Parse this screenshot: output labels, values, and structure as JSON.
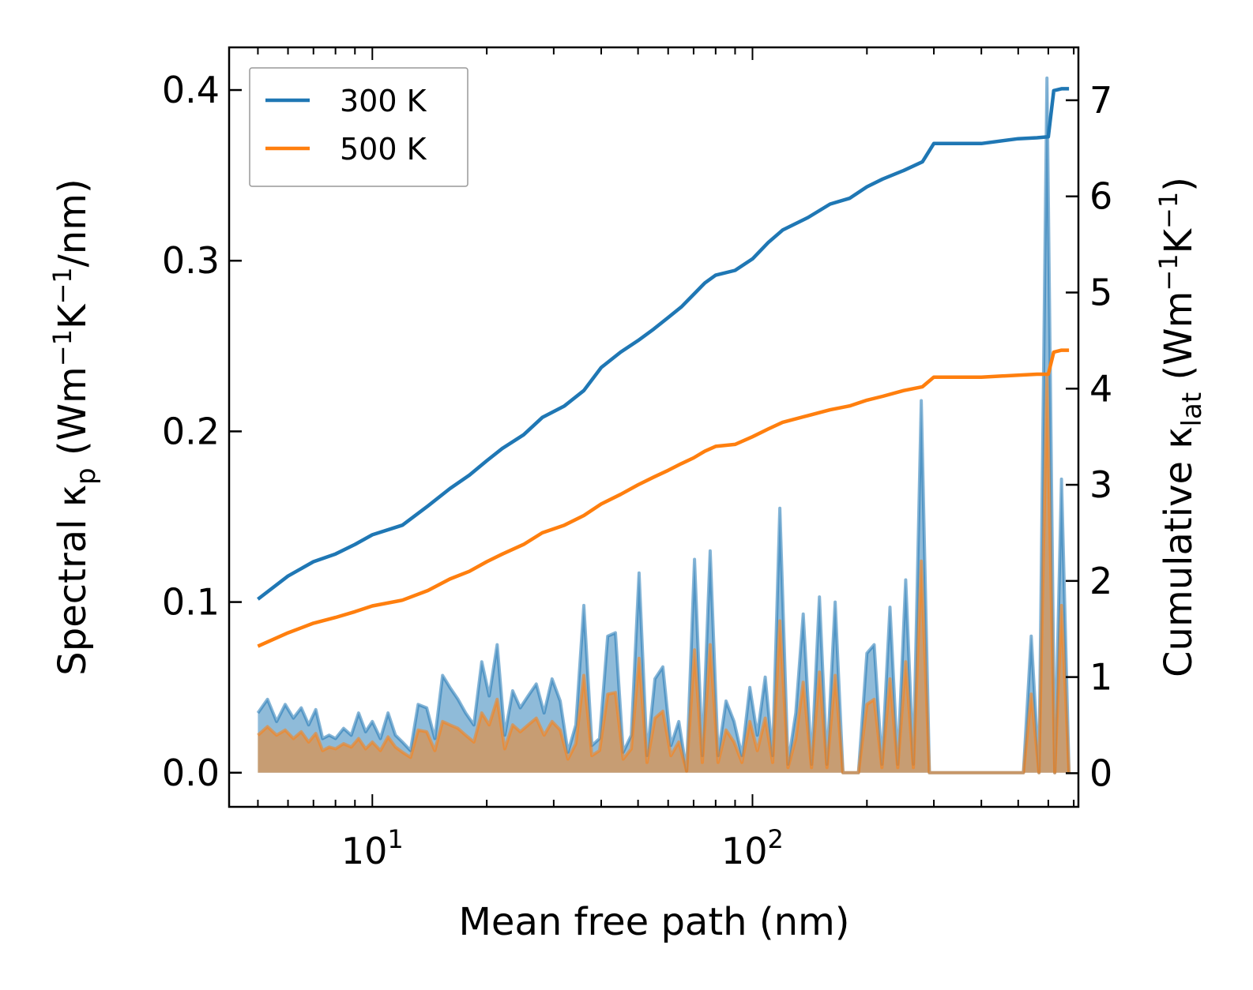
{
  "chart_data": {
    "type": "line",
    "title": "",
    "xlabel": "Mean free path (nm)",
    "xscale": "log",
    "xlim": [
      4.2,
      720
    ],
    "xticks": [
      {
        "base": "10",
        "exp": "1",
        "value": 10
      },
      {
        "base": "10",
        "exp": "2",
        "value": 100
      }
    ],
    "ylabel_left": {
      "prefix": "Spectral κ",
      "sub": "p",
      "mid": " (Wm",
      "sup1": "−1",
      "mid2": "K",
      "sup2": "−1",
      "suffix": "/nm)"
    },
    "ylim_left": [
      -0.02,
      0.425
    ],
    "yticks_left": [
      "0.0",
      "0.1",
      "0.2",
      "0.3",
      "0.4"
    ],
    "ylabel_right": {
      "prefix": "Cumulative κ",
      "sub": "lat",
      "mid": " (Wm",
      "sup1": "−1",
      "mid2": "K",
      "sup2": "−1",
      "suffix": ")"
    },
    "ylim_right": [
      -0.35,
      7.55
    ],
    "yticks_right": [
      "0",
      "1",
      "2",
      "3",
      "4",
      "5",
      "6",
      "7"
    ],
    "legend": {
      "position": "top-left",
      "entries": [
        "300 K",
        "500 K"
      ]
    },
    "series": [
      {
        "name": "300 K",
        "color": "#1f77b4",
        "axis": "right",
        "kind": "cumulative",
        "x": [
          5,
          6,
          7,
          8,
          9,
          10,
          12,
          14,
          16,
          18,
          20,
          22,
          25,
          28,
          32,
          36,
          40,
          45,
          50,
          55,
          60,
          65,
          70,
          75,
          80,
          90,
          100,
          110,
          120,
          140,
          160,
          180,
          200,
          220,
          250,
          280,
          300,
          400,
          500,
          560,
          600,
          620,
          650,
          680
        ],
        "values": [
          1.81,
          2.05,
          2.2,
          2.28,
          2.38,
          2.48,
          2.58,
          2.78,
          2.96,
          3.1,
          3.25,
          3.38,
          3.52,
          3.7,
          3.82,
          3.98,
          4.22,
          4.38,
          4.5,
          4.62,
          4.74,
          4.85,
          4.98,
          5.1,
          5.18,
          5.23,
          5.35,
          5.52,
          5.65,
          5.78,
          5.92,
          5.98,
          6.1,
          6.18,
          6.27,
          6.36,
          6.55,
          6.55,
          6.6,
          6.61,
          6.62,
          7.1,
          7.12,
          7.12
        ]
      },
      {
        "name": "500 K",
        "color": "#ff7f0e",
        "axis": "right",
        "kind": "cumulative",
        "x": [
          5,
          6,
          7,
          8,
          9,
          10,
          12,
          14,
          16,
          18,
          20,
          22,
          25,
          28,
          32,
          36,
          40,
          45,
          50,
          55,
          60,
          65,
          70,
          75,
          80,
          90,
          100,
          110,
          120,
          140,
          160,
          180,
          200,
          220,
          250,
          280,
          300,
          400,
          500,
          560,
          600,
          620,
          650,
          680
        ],
        "values": [
          1.32,
          1.46,
          1.56,
          1.62,
          1.68,
          1.74,
          1.8,
          1.9,
          2.02,
          2.1,
          2.2,
          2.28,
          2.38,
          2.5,
          2.58,
          2.68,
          2.8,
          2.9,
          3.0,
          3.08,
          3.15,
          3.22,
          3.28,
          3.35,
          3.4,
          3.42,
          3.5,
          3.58,
          3.65,
          3.72,
          3.78,
          3.82,
          3.88,
          3.92,
          3.98,
          4.02,
          4.12,
          4.12,
          4.14,
          4.15,
          4.15,
          4.38,
          4.4,
          4.4
        ]
      },
      {
        "name": "300 K",
        "color": "#1f77b4",
        "axis": "left",
        "kind": "spectral",
        "x": [
          5,
          5.3,
          5.6,
          5.9,
          6.2,
          6.5,
          6.8,
          7.1,
          7.4,
          7.7,
          8,
          8.4,
          8.8,
          9.2,
          9.6,
          10,
          10.5,
          11,
          11.5,
          12,
          12.6,
          13.2,
          13.9,
          14.6,
          15.3,
          16,
          16.8,
          17.6,
          18.5,
          19.4,
          20.3,
          21.3,
          22.3,
          23.4,
          24.5,
          25.7,
          27,
          28.3,
          29.7,
          31.2,
          32.7,
          34.3,
          36,
          37.8,
          39.6,
          41.6,
          43.6,
          45.7,
          48,
          50.3,
          52.8,
          55.4,
          58.1,
          61,
          64,
          67.1,
          70.4,
          73.8,
          77.4,
          81.2,
          85.2,
          89.4,
          93.8,
          98.4,
          103,
          108,
          113,
          118,
          124,
          130,
          136,
          143,
          150,
          157,
          165,
          173,
          181,
          190,
          200,
          209,
          219,
          230,
          241,
          253,
          265,
          278,
          292,
          306,
          321,
          336,
          352,
          370,
          388,
          407,
          427,
          447,
          469,
          492,
          516,
          541,
          567,
          595,
          624,
          650,
          680
        ],
        "values": [
          0.035,
          0.043,
          0.03,
          0.04,
          0.032,
          0.038,
          0.028,
          0.037,
          0.02,
          0.022,
          0.02,
          0.026,
          0.022,
          0.035,
          0.024,
          0.03,
          0.02,
          0.035,
          0.022,
          0.018,
          0.013,
          0.04,
          0.038,
          0.02,
          0.057,
          0.05,
          0.043,
          0.035,
          0.028,
          0.065,
          0.045,
          0.075,
          0.022,
          0.048,
          0.038,
          0.045,
          0.052,
          0.035,
          0.055,
          0.042,
          0.012,
          0.028,
          0.098,
          0.016,
          0.02,
          0.08,
          0.082,
          0.012,
          0.022,
          0.117,
          0.01,
          0.055,
          0.062,
          0.016,
          0.03,
          0.001,
          0.125,
          0.01,
          0.13,
          0.01,
          0.042,
          0.03,
          0.01,
          0.05,
          0.022,
          0.056,
          0.01,
          0.155,
          0.005,
          0.035,
          0.093,
          0.005,
          0.103,
          0.005,
          0.1,
          0,
          0,
          0,
          0.07,
          0.075,
          0.005,
          0.097,
          0.005,
          0.113,
          0.005,
          0.218,
          0,
          0,
          0,
          0,
          0,
          0,
          0,
          0,
          0,
          0,
          0,
          0,
          0,
          0.08,
          0,
          0.407,
          0,
          0.172,
          0
        ]
      },
      {
        "name": "500 K",
        "color": "#ff7f0e",
        "axis": "left",
        "kind": "spectral",
        "x": [
          5,
          5.3,
          5.6,
          5.9,
          6.2,
          6.5,
          6.8,
          7.1,
          7.4,
          7.7,
          8,
          8.4,
          8.8,
          9.2,
          9.6,
          10,
          10.5,
          11,
          11.5,
          12,
          12.6,
          13.2,
          13.9,
          14.6,
          15.3,
          16,
          16.8,
          17.6,
          18.5,
          19.4,
          20.3,
          21.3,
          22.3,
          23.4,
          24.5,
          25.7,
          27,
          28.3,
          29.7,
          31.2,
          32.7,
          34.3,
          36,
          37.8,
          39.6,
          41.6,
          43.6,
          45.7,
          48,
          50.3,
          52.8,
          55.4,
          58.1,
          61,
          64,
          67.1,
          70.4,
          73.8,
          77.4,
          81.2,
          85.2,
          89.4,
          93.8,
          98.4,
          103,
          108,
          113,
          118,
          124,
          130,
          136,
          143,
          150,
          157,
          165,
          173,
          181,
          190,
          200,
          209,
          219,
          230,
          241,
          253,
          265,
          278,
          292,
          306,
          321,
          336,
          352,
          370,
          388,
          407,
          427,
          447,
          469,
          492,
          516,
          541,
          567,
          595,
          624,
          650,
          680
        ],
        "values": [
          0.022,
          0.027,
          0.022,
          0.025,
          0.02,
          0.024,
          0.018,
          0.023,
          0.013,
          0.015,
          0.014,
          0.017,
          0.015,
          0.02,
          0.014,
          0.018,
          0.013,
          0.021,
          0.015,
          0.012,
          0.009,
          0.025,
          0.024,
          0.013,
          0.03,
          0.028,
          0.026,
          0.022,
          0.018,
          0.035,
          0.028,
          0.043,
          0.014,
          0.028,
          0.024,
          0.028,
          0.032,
          0.022,
          0.03,
          0.025,
          0.008,
          0.017,
          0.057,
          0.01,
          0.013,
          0.046,
          0.047,
          0.008,
          0.014,
          0.067,
          0.006,
          0.032,
          0.036,
          0.01,
          0.018,
          0.001,
          0.072,
          0.006,
          0.075,
          0.006,
          0.025,
          0.018,
          0.006,
          0.03,
          0.013,
          0.032,
          0.006,
          0.089,
          0.003,
          0.02,
          0.053,
          0.003,
          0.059,
          0.003,
          0.057,
          0,
          0,
          0,
          0.04,
          0.043,
          0.003,
          0.055,
          0.003,
          0.065,
          0.003,
          0.124,
          0,
          0,
          0,
          0,
          0,
          0,
          0,
          0,
          0,
          0,
          0,
          0,
          0,
          0.046,
          0,
          0.232,
          0,
          0.098,
          0
        ]
      }
    ]
  }
}
